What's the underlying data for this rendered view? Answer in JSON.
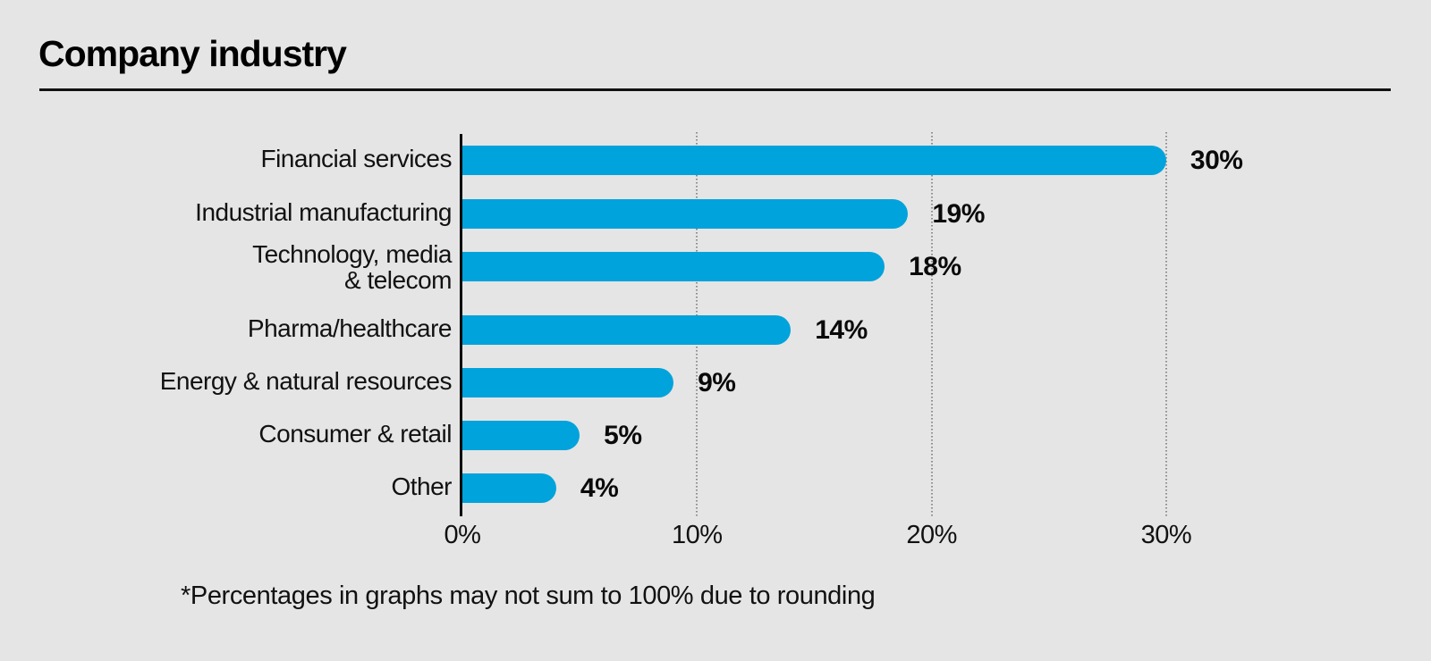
{
  "page": {
    "background": "#e5e5e5"
  },
  "header": {
    "title": "Company industry"
  },
  "chart_data": {
    "type": "bar",
    "orientation": "horizontal",
    "title": "Company industry",
    "categories": [
      "Financial services",
      "Industrial manufacturing",
      "Technology, media & telecom",
      "Pharma/healthcare",
      "Energy & natural resources",
      "Consumer & retail",
      "Other"
    ],
    "category_lines": [
      [
        "Financial services"
      ],
      [
        "Industrial manufacturing"
      ],
      [
        "Technology, media",
        "& telecom"
      ],
      [
        "Pharma/healthcare"
      ],
      [
        "Energy & natural resources"
      ],
      [
        "Consumer & retail"
      ],
      [
        "Other"
      ]
    ],
    "values": [
      30,
      19,
      18,
      14,
      9,
      5,
      4
    ],
    "value_labels": [
      "30%",
      "19%",
      "18%",
      "14%",
      "9%",
      "5%",
      "4%"
    ],
    "xlabel": "",
    "ylabel": "",
    "xlim": [
      0,
      30
    ],
    "x_tick_values": [
      0,
      10,
      20,
      30
    ],
    "x_tick_labels": [
      "0%",
      "10%",
      "20%",
      "30%"
    ],
    "grid": "vertical-dotted",
    "legend": "none",
    "bar_color": "#00a3db",
    "axis_color": "#0a0a0a",
    "gridline_color": "#8c8c8c",
    "label_color": "#111111"
  },
  "footnote": {
    "text": "*Percentages in graphs may not sum to 100% due to rounding"
  }
}
